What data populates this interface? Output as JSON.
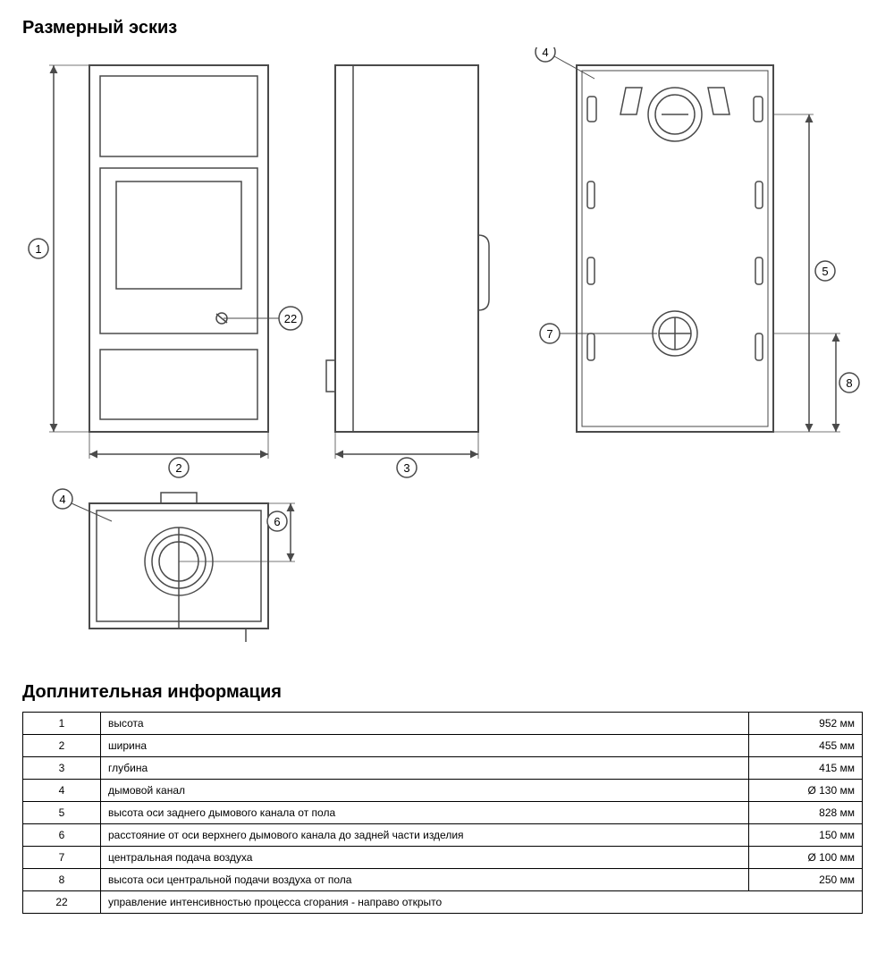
{
  "heading_sketch": "Размерный эскиз",
  "heading_info": "Доплнительная информация",
  "diagram": {
    "stroke": "#4a4a4a",
    "stroke_wide": "#3a3a3a",
    "callouts": {
      "c1": "1",
      "c2": "2",
      "c3": "3",
      "c4": "4",
      "c5": "5",
      "c6": "6",
      "c7": "7",
      "c8": "8",
      "c22": "22"
    }
  },
  "table": {
    "rows": [
      {
        "n": "1",
        "desc": "высота",
        "val": "952 мм"
      },
      {
        "n": "2",
        "desc": "ширина",
        "val": "455 мм"
      },
      {
        "n": "3",
        "desc": "глубина",
        "val": "415 мм"
      },
      {
        "n": "4",
        "desc": "дымовой канал",
        "val": "Ø 130 мм"
      },
      {
        "n": "5",
        "desc": "высота оси заднего дымового канала от пола",
        "val": "828 мм"
      },
      {
        "n": "6",
        "desc": "расстояние от оси верхнего дымового канала до задней части изделия",
        "val": "150 мм"
      },
      {
        "n": "7",
        "desc": "центральная подача воздуха",
        "val": "Ø 100 мм"
      },
      {
        "n": "8",
        "desc": "высота оси центральной подачи воздуха от пола",
        "val": "250 мм"
      },
      {
        "n": "22",
        "desc": "управление интенсивностью процесса сгорания - направо открыто",
        "val": ""
      }
    ]
  }
}
